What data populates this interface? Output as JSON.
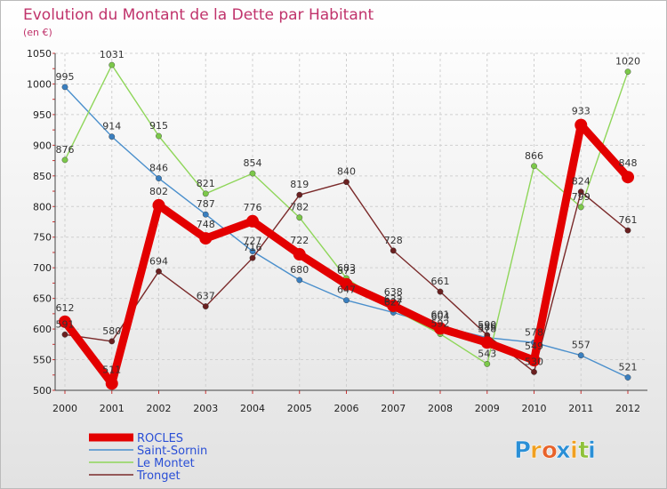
{
  "chart_data": {
    "type": "line",
    "title": "Evolution du Montant de la Dette par Habitant",
    "subtitle": "(en €)",
    "x": [
      "2000",
      "2001",
      "2002",
      "2003",
      "2004",
      "2005",
      "2006",
      "2007",
      "2008",
      "2009",
      "2010",
      "2011",
      "2012"
    ],
    "ylim": [
      500,
      1050
    ],
    "yticks": [
      500,
      550,
      600,
      650,
      700,
      750,
      800,
      850,
      900,
      950,
      1000,
      1050
    ],
    "grid": true,
    "legend_position": "bottom-left",
    "series": [
      {
        "name": "Saint-Sornin",
        "color": "#4a8fcc",
        "point_color": "#3a7fbf",
        "values": [
          995,
          914,
          846,
          787,
          727,
          680,
          647,
          627,
          604,
          586,
          578,
          557,
          521
        ],
        "labels": [
          "995",
          "914",
          "846",
          "787",
          "727",
          "680",
          "647",
          "627",
          "604",
          "586",
          "578",
          "557",
          "521"
        ]
      },
      {
        "name": "Le Montet",
        "color": "#8fd65a",
        "point_color": "#7cc84a",
        "values": [
          876,
          1031,
          915,
          821,
          854,
          782,
          683,
          632,
          592,
          543,
          866,
          799,
          1020
        ],
        "labels": [
          "876",
          "1031",
          "915",
          "821",
          "854",
          "782",
          "683",
          "632",
          "592",
          "543",
          "866",
          "799",
          "1020"
        ]
      },
      {
        "name": "Tronget",
        "color": "#7a2a2a",
        "point_color": "#6a2020",
        "values": [
          591,
          580,
          694,
          637,
          716,
          819,
          840,
          728,
          661,
          590,
          530,
          824,
          761
        ],
        "labels": [
          "591",
          "580",
          "694",
          "637",
          "716",
          "819",
          "840",
          "728",
          "661",
          "590",
          "530",
          "824",
          "761"
        ]
      },
      {
        "name": "ROCLES",
        "color": "#e30000",
        "point_color": "#e30000",
        "emphasis": true,
        "values": [
          612,
          511,
          802,
          748,
          776,
          722,
          673,
          638,
          601,
          578,
          549,
          933,
          848
        ],
        "labels": [
          "612",
          "511",
          "802",
          "748",
          "776",
          "722",
          "673",
          "638",
          "601",
          "578",
          "549",
          "933",
          "848"
        ]
      }
    ],
    "legend": [
      {
        "name": "ROCLES",
        "color": "#e30000",
        "emphasis": true
      },
      {
        "name": "Saint-Sornin",
        "color": "#4a8fcc"
      },
      {
        "name": "Le Montet",
        "color": "#8fd65a"
      },
      {
        "name": "Tronget",
        "color": "#7a2a2a"
      }
    ]
  },
  "brand": {
    "letters": [
      "P",
      "r",
      "o",
      "x",
      "i",
      "t",
      "i"
    ],
    "colors": [
      "#2a8fd6",
      "#f0a020",
      "#e8622a",
      "#2a8fd6",
      "#f0a020",
      "#8fc23a",
      "#2a8fd6"
    ]
  }
}
